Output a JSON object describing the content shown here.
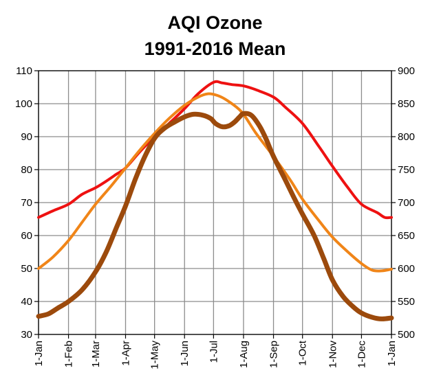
{
  "chart_data": {
    "type": "line",
    "title_lines": [
      "AQI Ozone",
      "1991-2016 Mean"
    ],
    "xlabel": "",
    "ylabel": "",
    "x_ticks": [
      "1-Jan",
      "1-Feb",
      "1-Mar",
      "1-Apr",
      "1-May",
      "1-Jun",
      "1-Jul",
      "1-Aug",
      "1-Sep",
      "1-Oct",
      "1-Nov",
      "1-Dec",
      "1-Jan"
    ],
    "x_range_days": [
      0,
      365
    ],
    "y_left": {
      "range": [
        30,
        110
      ],
      "ticks": [
        30,
        40,
        50,
        60,
        70,
        80,
        90,
        100,
        110
      ]
    },
    "y_right": {
      "range": [
        500,
        900
      ],
      "ticks": [
        500,
        550,
        600,
        650,
        700,
        750,
        800,
        850,
        900
      ]
    },
    "grid": true,
    "legend": "none",
    "series": [
      {
        "color": "#ee1111",
        "axis": "left",
        "points": [
          [
            0,
            65.5
          ],
          [
            15,
            67.5
          ],
          [
            31,
            69.5
          ],
          [
            45,
            72.5
          ],
          [
            59,
            74.5
          ],
          [
            70,
            76.5
          ],
          [
            80,
            78.5
          ],
          [
            90,
            80.5
          ],
          [
            105,
            85.5
          ],
          [
            120,
            90
          ],
          [
            135,
            94
          ],
          [
            151,
            98.5
          ],
          [
            165,
            103
          ],
          [
            181,
            106.5
          ],
          [
            190,
            106.3
          ],
          [
            200,
            105.8
          ],
          [
            212,
            105.4
          ],
          [
            225,
            104.2
          ],
          [
            243,
            102
          ],
          [
            255,
            99
          ],
          [
            273,
            94
          ],
          [
            290,
            87
          ],
          [
            304,
            81
          ],
          [
            320,
            74.5
          ],
          [
            334,
            69.5
          ],
          [
            350,
            67
          ],
          [
            358,
            65.5
          ],
          [
            365,
            65.5
          ]
        ]
      },
      {
        "color": "#f08518",
        "axis": "left",
        "points": [
          [
            0,
            50
          ],
          [
            15,
            53.5
          ],
          [
            31,
            58.5
          ],
          [
            45,
            64
          ],
          [
            59,
            69.5
          ],
          [
            75,
            75
          ],
          [
            90,
            80.5
          ],
          [
            105,
            86
          ],
          [
            120,
            91
          ],
          [
            135,
            95.5
          ],
          [
            151,
            99.5
          ],
          [
            165,
            102
          ],
          [
            175,
            103
          ],
          [
            185,
            102.5
          ],
          [
            195,
            101
          ],
          [
            210,
            97.5
          ],
          [
            225,
            91
          ],
          [
            243,
            84
          ],
          [
            260,
            77
          ],
          [
            273,
            71
          ],
          [
            290,
            64.5
          ],
          [
            304,
            59.5
          ],
          [
            320,
            55
          ],
          [
            334,
            51.5
          ],
          [
            345,
            49.5
          ],
          [
            355,
            49.3
          ],
          [
            365,
            49.8
          ]
        ]
      },
      {
        "color": "#9c4a0c",
        "axis": "left",
        "points": [
          [
            0,
            35.5
          ],
          [
            10,
            36.2
          ],
          [
            20,
            38
          ],
          [
            31,
            40
          ],
          [
            45,
            43.5
          ],
          [
            59,
            49
          ],
          [
            70,
            55
          ],
          [
            80,
            62
          ],
          [
            90,
            69
          ],
          [
            100,
            77
          ],
          [
            110,
            84
          ],
          [
            120,
            89.5
          ],
          [
            130,
            92.5
          ],
          [
            141,
            94.5
          ],
          [
            151,
            96
          ],
          [
            160,
            96.8
          ],
          [
            170,
            96.5
          ],
          [
            178,
            95.5
          ],
          [
            183,
            94
          ],
          [
            190,
            93
          ],
          [
            197,
            93.3
          ],
          [
            203,
            94.5
          ],
          [
            208,
            96
          ],
          [
            212,
            97
          ],
          [
            220,
            96.5
          ],
          [
            228,
            93.5
          ],
          [
            235,
            89.5
          ],
          [
            243,
            84
          ],
          [
            255,
            77
          ],
          [
            265,
            71
          ],
          [
            273,
            66.5
          ],
          [
            285,
            60
          ],
          [
            295,
            53
          ],
          [
            304,
            46.5
          ],
          [
            315,
            41.5
          ],
          [
            325,
            38.5
          ],
          [
            334,
            36.5
          ],
          [
            345,
            35.2
          ],
          [
            355,
            34.7
          ],
          [
            365,
            35
          ]
        ]
      }
    ]
  }
}
